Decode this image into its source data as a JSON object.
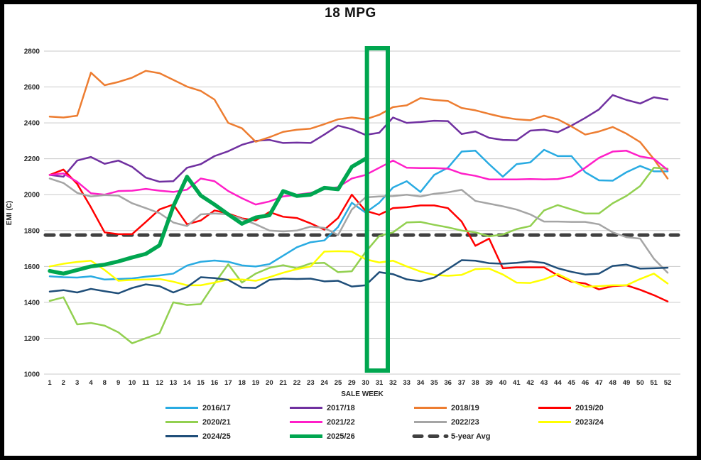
{
  "window": {
    "background_color": "#FFFFFF",
    "frame_color": "#000000"
  },
  "chart_data": {
    "type": "line",
    "title": "18 MPG",
    "xlabel": "SALE WEEK",
    "ylabel": "EMI (C)",
    "ylim": [
      1000,
      2800
    ],
    "yticks": [
      1000,
      1200,
      1400,
      1600,
      1800,
      2000,
      2200,
      2400,
      2600,
      2800
    ],
    "grid": "horizontal",
    "gridline_color": "#C9C9C9",
    "tick_label_color": "#262626",
    "x_categories": [
      1,
      2,
      3,
      4,
      8,
      9,
      10,
      11,
      12,
      13,
      14,
      15,
      16,
      17,
      18,
      19,
      20,
      21,
      22,
      23,
      24,
      25,
      29,
      30,
      31,
      32,
      33,
      34,
      35,
      36,
      37,
      38,
      39,
      40,
      41,
      42,
      43,
      44,
      45,
      46,
      47,
      48,
      49,
      50,
      51,
      52
    ],
    "highlight_box": {
      "week_start": 30,
      "week_end": 31,
      "color": "#00A64F"
    },
    "series": [
      {
        "name": "2016/17",
        "color": "#29ABE2",
        "thick": false,
        "dashed": false,
        "values": [
          1545,
          1540,
          1538,
          1545,
          1527,
          1530,
          1533,
          1543,
          1550,
          1560,
          1605,
          1626,
          1633,
          1626,
          1606,
          1600,
          1613,
          1660,
          1707,
          1735,
          1745,
          1820,
          1955,
          1900,
          1955,
          2040,
          2075,
          2015,
          2110,
          2150,
          2240,
          2245,
          2170,
          2100,
          2170,
          2180,
          2250,
          2215,
          2215,
          2125,
          2080,
          2078,
          2125,
          2160,
          2130,
          2130
        ]
      },
      {
        "name": "2017/18",
        "color": "#7030A0",
        "thick": false,
        "dashed": false,
        "values": [
          2110,
          2100,
          2190,
          2210,
          2172,
          2190,
          2155,
          2095,
          2072,
          2075,
          2150,
          2170,
          2215,
          2242,
          2278,
          2300,
          2305,
          2288,
          2290,
          2288,
          2335,
          2385,
          2365,
          2333,
          2345,
          2430,
          2400,
          2405,
          2412,
          2410,
          2338,
          2352,
          2317,
          2305,
          2303,
          2357,
          2362,
          2348,
          2385,
          2428,
          2475,
          2555,
          2528,
          2508,
          2543,
          2530
        ]
      },
      {
        "name": "2018/19",
        "color": "#ED7D31",
        "thick": false,
        "dashed": false,
        "values": [
          2435,
          2430,
          2440,
          2680,
          2610,
          2628,
          2652,
          2690,
          2677,
          2640,
          2602,
          2578,
          2530,
          2400,
          2370,
          2295,
          2320,
          2350,
          2362,
          2368,
          2393,
          2420,
          2430,
          2420,
          2445,
          2488,
          2498,
          2538,
          2528,
          2522,
          2483,
          2470,
          2450,
          2432,
          2420,
          2415,
          2440,
          2420,
          2380,
          2335,
          2352,
          2377,
          2340,
          2293,
          2198,
          2090
        ]
      },
      {
        "name": "2019/20",
        "color": "#FF0000",
        "thick": false,
        "dashed": false,
        "values": [
          2110,
          2140,
          2060,
          1930,
          1790,
          1780,
          1780,
          1848,
          1918,
          1945,
          1835,
          1856,
          1912,
          1895,
          1868,
          1856,
          1903,
          1877,
          1870,
          1840,
          1805,
          1870,
          2000,
          1910,
          1888,
          1925,
          1930,
          1940,
          1940,
          1925,
          1850,
          1715,
          1755,
          1590,
          1595,
          1595,
          1595,
          1550,
          1515,
          1505,
          1472,
          1490,
          1495,
          1470,
          1440,
          1405
        ]
      },
      {
        "name": "2020/21",
        "color": "#92D050",
        "thick": false,
        "dashed": false,
        "values": [
          1408,
          1428,
          1277,
          1285,
          1270,
          1233,
          1172,
          1200,
          1228,
          1400,
          1385,
          1390,
          1505,
          1612,
          1510,
          1560,
          1592,
          1607,
          1590,
          1617,
          1620,
          1568,
          1573,
          1680,
          1770,
          1790,
          1845,
          1848,
          1832,
          1818,
          1800,
          1790,
          1768,
          1778,
          1808,
          1825,
          1912,
          1942,
          1918,
          1895,
          1895,
          1952,
          1993,
          2048,
          2150,
          2145
        ]
      },
      {
        "name": "2021/22",
        "color": "#FF1FC8",
        "thick": false,
        "dashed": false,
        "values": [
          2110,
          2118,
          2072,
          2008,
          2000,
          2020,
          2022,
          2032,
          2022,
          2015,
          2028,
          2090,
          2075,
          2020,
          1980,
          1945,
          1962,
          1990,
          2000,
          2010,
          2030,
          2042,
          2090,
          2110,
          2150,
          2190,
          2150,
          2148,
          2148,
          2145,
          2118,
          2105,
          2085,
          2085,
          2085,
          2087,
          2085,
          2087,
          2102,
          2150,
          2205,
          2240,
          2245,
          2213,
          2200,
          2138
        ]
      },
      {
        "name": "2022/23",
        "color": "#A5A5A5",
        "thick": false,
        "dashed": false,
        "values": [
          2090,
          2065,
          2010,
          1990,
          1998,
          1995,
          1952,
          1925,
          1897,
          1845,
          1825,
          1890,
          1895,
          1890,
          1864,
          1835,
          1800,
          1795,
          1800,
          1822,
          1815,
          1775,
          1917,
          1985,
          1990,
          1992,
          2000,
          1990,
          2005,
          2013,
          2027,
          1965,
          1950,
          1935,
          1917,
          1890,
          1850,
          1850,
          1848,
          1848,
          1835,
          1790,
          1763,
          1755,
          1643,
          1565
        ]
      },
      {
        "name": "2023/24",
        "color": "#FFFF00",
        "thick": false,
        "dashed": false,
        "values": [
          1600,
          1615,
          1625,
          1632,
          1580,
          1520,
          1525,
          1527,
          1530,
          1515,
          1495,
          1495,
          1510,
          1527,
          1527,
          1520,
          1540,
          1565,
          1585,
          1600,
          1683,
          1685,
          1683,
          1640,
          1622,
          1632,
          1600,
          1572,
          1553,
          1548,
          1553,
          1585,
          1588,
          1555,
          1510,
          1508,
          1528,
          1558,
          1520,
          1487,
          1490,
          1495,
          1495,
          1530,
          1560,
          1505
        ]
      },
      {
        "name": "2024/25",
        "color": "#1F4E79",
        "thick": false,
        "dashed": false,
        "values": [
          1460,
          1468,
          1455,
          1475,
          1462,
          1450,
          1480,
          1500,
          1490,
          1455,
          1485,
          1540,
          1535,
          1525,
          1482,
          1480,
          1525,
          1532,
          1530,
          1532,
          1517,
          1520,
          1488,
          1495,
          1568,
          1557,
          1528,
          1518,
          1538,
          1585,
          1635,
          1632,
          1618,
          1615,
          1620,
          1628,
          1620,
          1590,
          1570,
          1555,
          1560,
          1603,
          1610,
          1588,
          1590,
          1593
        ]
      },
      {
        "name": "2025/26",
        "color": "#00A650",
        "thick": true,
        "dashed": false,
        "values": [
          1575,
          1560,
          1580,
          1600,
          1610,
          1628,
          1650,
          1670,
          1718,
          1935,
          2100,
          1995,
          1945,
          1890,
          1838,
          1873,
          1885,
          2020,
          1993,
          2000,
          2038,
          2030,
          2155,
          2200
        ]
      },
      {
        "name": "5-year Avg",
        "color": "#404040",
        "thick": true,
        "dashed": true,
        "constant": 1775
      }
    ],
    "legend": {
      "position": "bottom",
      "rows": [
        [
          "2016/17",
          "2017/18",
          "2018/19",
          "2019/20"
        ],
        [
          "2020/21",
          "2021/22",
          "2022/23",
          "2023/24"
        ],
        [
          "2024/25",
          "2025/26",
          "5-year Avg"
        ]
      ]
    }
  }
}
